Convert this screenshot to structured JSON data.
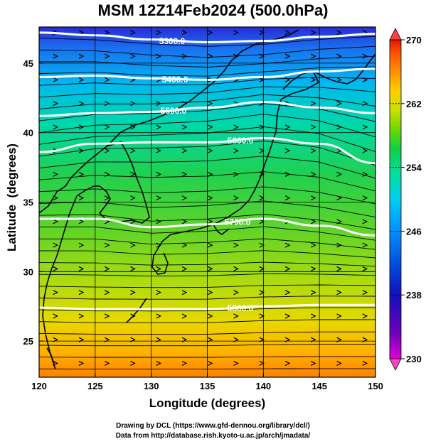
{
  "title": "MSM 12Z14Feb2024 (500.0hPa)",
  "xlabel": "Longitude (degrees)",
  "ylabel": "Latitude  (degrees)",
  "credit_line1": "Drawing by DCL (https://www.gfd-dennou.org/library/dcl/)",
  "credit_line2": "Data from http://database.rish.kyoto-u.ac.jp/arch/jmadata/",
  "x_ticks": [
    120,
    125,
    130,
    135,
    140,
    145,
    150
  ],
  "y_ticks": [
    25,
    30,
    35,
    40,
    45
  ],
  "x_range": [
    120,
    150
  ],
  "y_range": [
    22.4,
    47.6
  ],
  "colorbar": {
    "ticks": [
      230,
      238,
      246,
      254,
      262,
      270
    ],
    "range": [
      230,
      270
    ],
    "colors": [
      "#e000e0",
      "#6a00b0",
      "#1010c0",
      "#0050e0",
      "#0090ff",
      "#00d0f0",
      "#00e0a0",
      "#10d040",
      "#70d800",
      "#c8e000",
      "#ffd000",
      "#ff9000",
      "#ff5000",
      "#e01800"
    ]
  },
  "contours": [
    {
      "label": "5300.0",
      "lats": [
        47.2,
        47.0,
        46.7,
        46.5,
        46.6,
        46.9,
        47.1
      ]
    },
    {
      "label": "5400.0",
      "lats": [
        44.0,
        44.1,
        43.9,
        43.8,
        44.0,
        44.4,
        44.6
      ]
    },
    {
      "label": "5500.0",
      "lats": [
        41.2,
        41.4,
        41.5,
        41.8,
        42.2,
        41.8,
        41.4
      ]
    },
    {
      "label": "5600.0",
      "lats": [
        38.6,
        39.2,
        39.3,
        39.3,
        39.6,
        39.2,
        37.8
      ]
    },
    {
      "label": "5700.0",
      "lats": [
        33.8,
        33.8,
        33.2,
        33.4,
        33.8,
        33.3,
        32.6
      ]
    },
    {
      "label": "5800.0",
      "lats": [
        27.4,
        27.3,
        27.3,
        27.3,
        27.5,
        27.6,
        27.6
      ]
    }
  ]
}
